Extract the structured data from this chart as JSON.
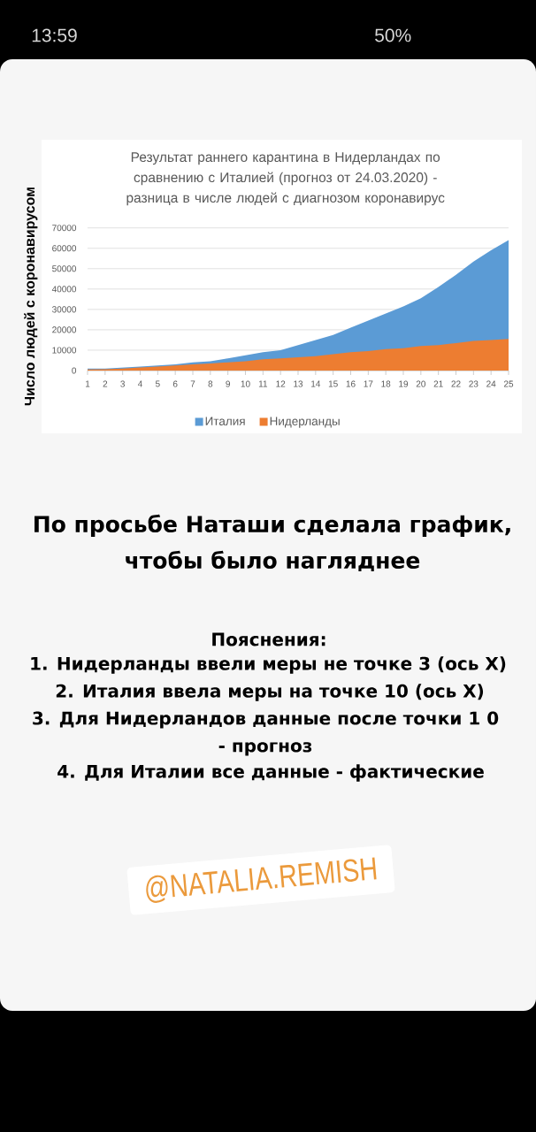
{
  "chart_data": {
    "type": "area",
    "title": "Результат раннего карантина в Нидерландах по сравнению с Италией (прогноз от 24.03.2020) - разница в числе людей с диагнозом коронавирус",
    "ylabel": "Число людей с коронавирусом",
    "categories": [
      "1",
      "2",
      "3",
      "4",
      "5",
      "6",
      "7",
      "8",
      "9",
      "10",
      "11",
      "12",
      "13",
      "14",
      "15",
      "16",
      "17",
      "18",
      "19",
      "20",
      "21",
      "22",
      "23",
      "24",
      "25"
    ],
    "series": [
      {
        "name": "Италия",
        "color": "#5b9bd5",
        "values": [
          1000,
          1000,
          1500,
          2000,
          2500,
          3000,
          4000,
          4500,
          6000,
          7500,
          9000,
          10000,
          12500,
          15000,
          17500,
          21000,
          24500,
          28000,
          31500,
          35500,
          41000,
          47000,
          53500,
          59000,
          64000
        ]
      },
      {
        "name": "Нидерланды",
        "color": "#ed7d31",
        "values": [
          500,
          700,
          1000,
          1500,
          2000,
          2500,
          3000,
          3500,
          4000,
          4500,
          5500,
          6000,
          6500,
          7000,
          8000,
          9000,
          9500,
          10500,
          11000,
          12000,
          12500,
          13500,
          14500,
          15000,
          15500
        ]
      }
    ],
    "ylim": [
      0,
      70000
    ],
    "yticks": [
      0,
      10000,
      20000,
      30000,
      40000,
      50000,
      60000,
      70000
    ],
    "grid": "y",
    "legend": "bottom",
    "annotations": [
      "13:59",
      "50%",
      "По просьбе Наташи сделала график, чтобы было нагляднее",
      "Пояснения:",
      "1. Нидерланды ввели меры не точке 3 (ось X)",
      "2. Италия ввела меры на точке 10 (ось X)",
      "3. Для Нидерландов данные после точки 1 0 - прогноз",
      "4. Для Италии все данные - фактические",
      "@NATALIA.REMISH"
    ]
  }
}
